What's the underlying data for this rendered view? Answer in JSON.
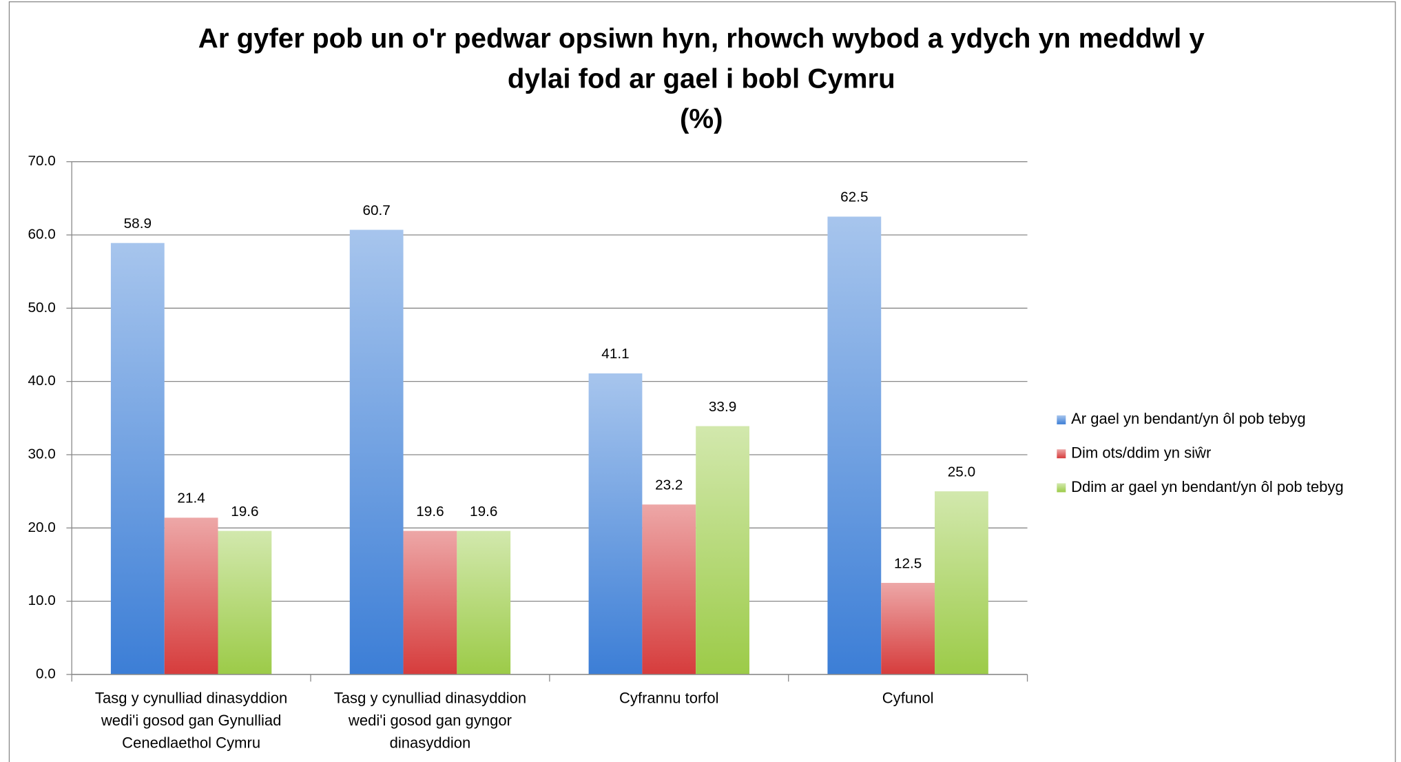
{
  "chart_data": {
    "type": "bar",
    "title": [
      "Ar gyfer pob un o'r pedwar opsiwn hyn, rhowch wybod a ydych yn meddwl y",
      "dylai fod ar gael i bobl Cymru",
      "(%)"
    ],
    "categories": [
      "Tasg y cynulliad dinasyddion wedi'i gosod gan Gynulliad Cenedlaethol Cymru",
      "Tasg y cynulliad dinasyddion wedi'i gosod gan gyngor dinasyddion",
      "Cyfrannu torfol",
      "Cyfunol"
    ],
    "series": [
      {
        "name": "Ar gael yn bendant/yn ôl pob tebyg",
        "color": "#3c7ed6",
        "values": [
          58.9,
          60.7,
          41.1,
          62.5
        ],
        "value_labels": [
          "58.9",
          "60.7",
          "41.1",
          "62.5"
        ]
      },
      {
        "name": "Dim ots/ddim yn siŵr",
        "color": "#d63c3c",
        "values": [
          21.4,
          19.6,
          23.2,
          12.5
        ],
        "value_labels": [
          "21.4",
          "19.6",
          "23.2",
          "12.5"
        ]
      },
      {
        "name": "Ddim ar gael yn bendant/yn ôl pob tebyg",
        "color": "#9ccb48",
        "values": [
          19.6,
          19.6,
          33.9,
          25
        ],
        "value_labels": [
          "19.6",
          "19.6",
          "33.9",
          "25.0"
        ]
      }
    ],
    "ylim": [
      0,
      70
    ],
    "yticks": [
      {
        "value": 0,
        "label": "0.0"
      },
      {
        "value": 10,
        "label": "10.0"
      },
      {
        "value": 20,
        "label": "20.0"
      },
      {
        "value": 30,
        "label": "30.0"
      },
      {
        "value": 40,
        "label": "40.0"
      },
      {
        "value": 50,
        "label": "50.0"
      },
      {
        "value": 60,
        "label": "60.0"
      },
      {
        "value": 70,
        "label": "70.0"
      }
    ],
    "grid": true,
    "legend": "right"
  }
}
